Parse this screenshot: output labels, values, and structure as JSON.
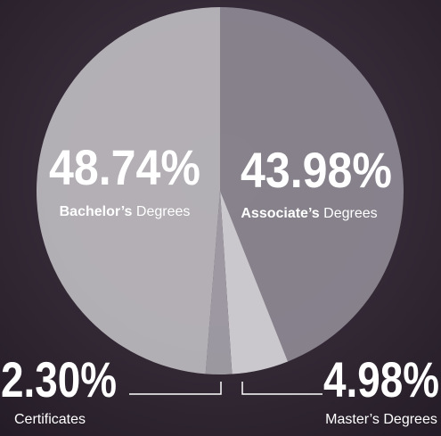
{
  "chart_data": {
    "type": "pie",
    "categories": [
      "Associate’s Degrees",
      "Master’s Degrees",
      "Certificates",
      "Bachelor’s Degrees"
    ],
    "values": [
      43.98,
      4.98,
      2.3,
      48.74
    ],
    "value_labels": [
      "43.98%",
      "4.98%",
      "2.30%",
      "48.74%"
    ],
    "colors": [
      "#8b8690",
      "#d3d1d5",
      "#a29ea6",
      "#b9b6bc"
    ]
  }
}
